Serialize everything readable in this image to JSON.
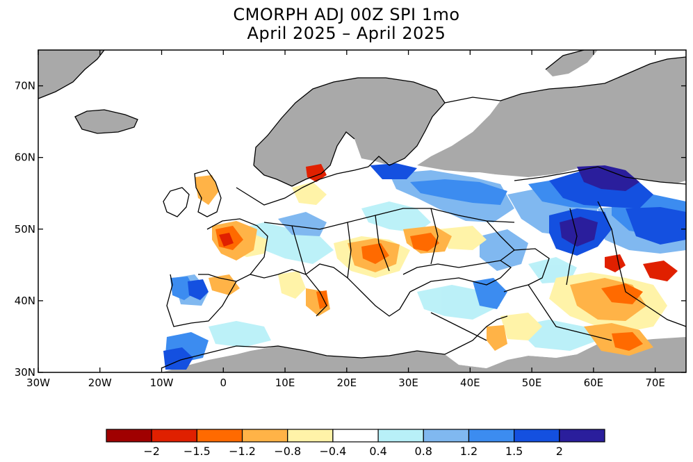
{
  "title": {
    "line1": "CMORPH ADJ 00Z SPI 1mo",
    "line2": "April 2025 – April 2025"
  },
  "map": {
    "projection": "lat-lon",
    "lon_range": [
      -30,
      75
    ],
    "lat_range": [
      30,
      75
    ],
    "lon_ticks": [
      "30W",
      "20W",
      "10W",
      "0",
      "10E",
      "20E",
      "30E",
      "40E",
      "50E",
      "60E",
      "70E"
    ],
    "lat_ticks": [
      "30N",
      "40N",
      "50N",
      "60N",
      "70N"
    ],
    "colors": {
      "land_no_data": "#a9a9a9",
      "ocean": "#ffffff",
      "coastline": "#000000"
    }
  },
  "colorbar": {
    "labels": [
      "−2",
      "−1.5",
      "−1.2",
      "−0.8",
      "−0.4",
      "0.4",
      "0.8",
      "1.2",
      "1.5",
      "2"
    ],
    "colors": [
      "#a00000",
      "#e02000",
      "#ff6a00",
      "#ffb347",
      "#fff3a8",
      "#ffffff",
      "#b8f0f8",
      "#80b8f0",
      "#3c8cf0",
      "#1450e0",
      "#2a1e9c"
    ]
  }
}
